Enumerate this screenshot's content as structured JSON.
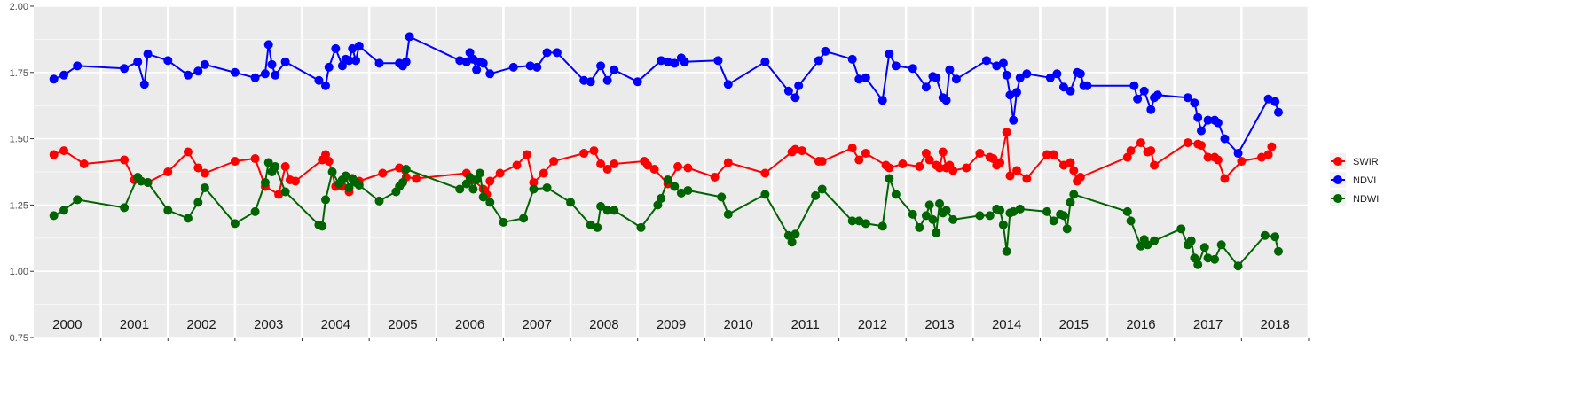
{
  "chart_data": {
    "type": "line",
    "title": "",
    "xlabel": "",
    "ylabel": "",
    "x_range": [
      2000.0,
      2019.0
    ],
    "ylim": [
      0.75,
      2.0
    ],
    "y_ticks": [
      "0.75",
      "1.00",
      "1.25",
      "1.50",
      "1.75",
      "2.00"
    ],
    "year_labels": [
      "2000",
      "2001",
      "2002",
      "2003",
      "2004",
      "2005",
      "2006",
      "2007",
      "2008",
      "2009",
      "2010",
      "2011",
      "2012",
      "2013",
      "2014",
      "2015",
      "2016",
      "2017",
      "2018"
    ],
    "grid": true,
    "legend_position": "right",
    "series": [
      {
        "name": "SWIR",
        "color": "#ff0000",
        "x": [
          2000.3,
          2000.45,
          2000.75,
          2001.35,
          2001.5,
          2001.7,
          2002.0,
          2002.3,
          2002.45,
          2002.55,
          2003.0,
          2003.3,
          2003.45,
          2003.65,
          2003.75,
          2003.82,
          2003.9,
          2004.3,
          2004.35,
          2004.4,
          2004.5,
          2004.6,
          2004.7,
          2004.75,
          2004.85,
          2005.2,
          2005.45,
          2005.55,
          2005.7,
          2006.45,
          2006.55,
          2006.7,
          2006.75,
          2006.8,
          2006.95,
          2007.2,
          2007.35,
          2007.45,
          2007.6,
          2007.75,
          2008.2,
          2008.35,
          2008.45,
          2008.55,
          2008.65,
          2009.1,
          2009.15,
          2009.25,
          2009.45,
          2009.6,
          2009.75,
          2010.15,
          2010.35,
          2010.9,
          2011.3,
          2011.35,
          2011.45,
          2011.7,
          2011.75,
          2012.2,
          2012.3,
          2012.4,
          2012.7,
          2012.75,
          2012.95,
          2013.2,
          2013.3,
          2013.35,
          2013.45,
          2013.5,
          2013.55,
          2013.6,
          2013.65,
          2013.7,
          2013.9,
          2014.1,
          2014.25,
          2014.3,
          2014.35,
          2014.4,
          2014.5,
          2014.55,
          2014.65,
          2014.8,
          2015.1,
          2015.2,
          2015.35,
          2015.45,
          2015.5,
          2015.55,
          2015.6,
          2016.3,
          2016.35,
          2016.5,
          2016.6,
          2016.65,
          2016.7,
          2017.2,
          2017.35,
          2017.4,
          2017.5,
          2017.6,
          2017.65,
          2017.75,
          2018.0,
          2018.3,
          2018.4
        ],
        "values": [
          1.44,
          1.455,
          1.405,
          1.42,
          1.345,
          1.335,
          1.375,
          1.45,
          1.39,
          1.37,
          1.415,
          1.425,
          1.32,
          1.29,
          1.395,
          1.345,
          1.34,
          1.42,
          1.44,
          1.415,
          1.32,
          1.32,
          1.3,
          1.35,
          1.34,
          1.37,
          1.39,
          1.355,
          1.35,
          1.37,
          1.345,
          1.31,
          1.29,
          1.34,
          1.37,
          1.4,
          1.44,
          1.335,
          1.37,
          1.415,
          1.445,
          1.455,
          1.405,
          1.385,
          1.405,
          1.415,
          1.4,
          1.385,
          1.33,
          1.395,
          1.39,
          1.355,
          1.41,
          1.37,
          1.45,
          1.46,
          1.455,
          1.415,
          1.415,
          1.465,
          1.42,
          1.445,
          1.4,
          1.39,
          1.405,
          1.395,
          1.445,
          1.42,
          1.4,
          1.39,
          1.45,
          1.39,
          1.4,
          1.38,
          1.39,
          1.445,
          1.43,
          1.425,
          1.4,
          1.41,
          1.525,
          1.36,
          1.38,
          1.35,
          1.44,
          1.44,
          1.4,
          1.41,
          1.38,
          1.34,
          1.355,
          1.43,
          1.455,
          1.485,
          1.45,
          1.455,
          1.4,
          1.485,
          1.48,
          1.475,
          1.43,
          1.43,
          1.42,
          1.35,
          1.415,
          1.43,
          1.44
        ],
        "end_point": [
          2018.45,
          1.47
        ]
      },
      {
        "name": "NDVI",
        "color": "#0000ff",
        "x": [
          2000.3,
          2000.45,
          2000.65,
          2001.35,
          2001.55,
          2001.65,
          2001.7,
          2002.0,
          2002.3,
          2002.45,
          2002.55,
          2003.0,
          2003.3,
          2003.45,
          2003.5,
          2003.55,
          2003.6,
          2003.75,
          2004.25,
          2004.35,
          2004.4,
          2004.5,
          2004.6,
          2004.65,
          2004.7,
          2004.75,
          2004.8,
          2004.85,
          2005.15,
          2005.45,
          2005.5,
          2005.55,
          2005.6,
          2006.35,
          2006.45,
          2006.5,
          2006.55,
          2006.6,
          2006.65,
          2006.7,
          2006.8,
          2007.15,
          2007.4,
          2007.5,
          2007.65,
          2007.8,
          2008.2,
          2008.3,
          2008.45,
          2008.55,
          2008.65,
          2009.0,
          2009.35,
          2009.45,
          2009.55,
          2009.65,
          2009.7,
          2010.2,
          2010.35,
          2010.9,
          2011.25,
          2011.35,
          2011.4,
          2011.7,
          2011.8,
          2012.2,
          2012.3,
          2012.4,
          2012.65,
          2012.75,
          2012.85,
          2013.1,
          2013.3,
          2013.4,
          2013.45,
          2013.55,
          2013.6,
          2013.65,
          2013.75,
          2014.2,
          2014.35,
          2014.45,
          2014.5,
          2014.55,
          2014.6,
          2014.65,
          2014.7,
          2014.8,
          2015.15,
          2015.25,
          2015.35,
          2015.45,
          2015.55,
          2015.6,
          2015.65,
          2015.7,
          2016.4,
          2016.45,
          2016.55,
          2016.65,
          2016.7,
          2016.75,
          2017.2,
          2017.3,
          2017.35,
          2017.4,
          2017.5,
          2017.6,
          2017.65,
          2017.75,
          2017.95,
          2018.4,
          2018.5
        ],
        "values": [
          1.725,
          1.74,
          1.775,
          1.765,
          1.79,
          1.705,
          1.82,
          1.795,
          1.74,
          1.755,
          1.78,
          1.75,
          1.73,
          1.745,
          1.855,
          1.78,
          1.74,
          1.79,
          1.72,
          1.7,
          1.77,
          1.84,
          1.775,
          1.8,
          1.795,
          1.84,
          1.795,
          1.85,
          1.785,
          1.785,
          1.775,
          1.79,
          1.885,
          1.795,
          1.79,
          1.825,
          1.8,
          1.76,
          1.79,
          1.785,
          1.745,
          1.77,
          1.775,
          1.77,
          1.825,
          1.825,
          1.72,
          1.715,
          1.775,
          1.72,
          1.76,
          1.715,
          1.795,
          1.79,
          1.785,
          1.805,
          1.79,
          1.795,
          1.705,
          1.79,
          1.68,
          1.655,
          1.7,
          1.795,
          1.83,
          1.8,
          1.725,
          1.73,
          1.645,
          1.82,
          1.775,
          1.765,
          1.695,
          1.735,
          1.73,
          1.655,
          1.645,
          1.76,
          1.725,
          1.795,
          1.775,
          1.785,
          1.74,
          1.665,
          1.57,
          1.675,
          1.73,
          1.745,
          1.73,
          1.745,
          1.695,
          1.68,
          1.75,
          1.745,
          1.7,
          1.7,
          1.7,
          1.65,
          1.68,
          1.61,
          1.655,
          1.665,
          1.655,
          1.635,
          1.58,
          1.53,
          1.57,
          1.57,
          1.56,
          1.5,
          1.445,
          1.65,
          1.64
        ],
        "end_point": [
          2018.55,
          1.6
        ]
      },
      {
        "name": "NDWI",
        "color": "#006400",
        "x": [
          2000.3,
          2000.45,
          2000.65,
          2001.35,
          2001.55,
          2001.6,
          2001.7,
          2002.0,
          2002.3,
          2002.45,
          2002.55,
          2003.0,
          2003.3,
          2003.45,
          2003.5,
          2003.55,
          2003.6,
          2003.75,
          2004.25,
          2004.3,
          2004.35,
          2004.45,
          2004.55,
          2004.6,
          2004.65,
          2004.7,
          2004.75,
          2004.8,
          2004.85,
          2005.15,
          2005.4,
          2005.45,
          2005.5,
          2005.55,
          2006.35,
          2006.45,
          2006.5,
          2006.55,
          2006.6,
          2006.65,
          2006.7,
          2006.8,
          2007.0,
          2007.3,
          2007.45,
          2007.65,
          2008.0,
          2008.3,
          2008.4,
          2008.45,
          2008.55,
          2008.65,
          2009.05,
          2009.3,
          2009.35,
          2009.45,
          2009.55,
          2009.65,
          2009.75,
          2010.25,
          2010.35,
          2010.9,
          2011.25,
          2011.3,
          2011.35,
          2011.65,
          2011.75,
          2012.2,
          2012.3,
          2012.4,
          2012.65,
          2012.75,
          2012.85,
          2013.1,
          2013.2,
          2013.3,
          2013.35,
          2013.4,
          2013.45,
          2013.5,
          2013.55,
          2013.6,
          2013.7,
          2014.1,
          2014.25,
          2014.35,
          2014.4,
          2014.45,
          2014.5,
          2014.55,
          2014.6,
          2014.7,
          2015.1,
          2015.2,
          2015.3,
          2015.35,
          2015.4,
          2015.45,
          2015.5,
          2016.3,
          2016.35,
          2016.5,
          2016.55,
          2016.6,
          2016.7,
          2017.1,
          2017.2,
          2017.25,
          2017.3,
          2017.35,
          2017.45,
          2017.5,
          2017.6,
          2017.7,
          2017.95,
          2018.35,
          2018.5
        ],
        "values": [
          1.21,
          1.23,
          1.27,
          1.24,
          1.355,
          1.34,
          1.335,
          1.23,
          1.2,
          1.26,
          1.315,
          1.18,
          1.225,
          1.335,
          1.41,
          1.375,
          1.395,
          1.3,
          1.175,
          1.17,
          1.27,
          1.375,
          1.33,
          1.345,
          1.36,
          1.315,
          1.35,
          1.335,
          1.325,
          1.265,
          1.3,
          1.32,
          1.335,
          1.385,
          1.31,
          1.33,
          1.355,
          1.31,
          1.345,
          1.37,
          1.28,
          1.26,
          1.185,
          1.2,
          1.31,
          1.315,
          1.26,
          1.175,
          1.165,
          1.245,
          1.23,
          1.23,
          1.165,
          1.25,
          1.275,
          1.345,
          1.32,
          1.295,
          1.305,
          1.28,
          1.215,
          1.29,
          1.135,
          1.11,
          1.14,
          1.285,
          1.31,
          1.19,
          1.19,
          1.18,
          1.17,
          1.35,
          1.29,
          1.215,
          1.165,
          1.21,
          1.25,
          1.195,
          1.145,
          1.255,
          1.22,
          1.23,
          1.195,
          1.21,
          1.21,
          1.235,
          1.23,
          1.175,
          1.075,
          1.22,
          1.225,
          1.235,
          1.225,
          1.19,
          1.215,
          1.21,
          1.16,
          1.26,
          1.29,
          1.225,
          1.19,
          1.095,
          1.12,
          1.1,
          1.115,
          1.16,
          1.1,
          1.115,
          1.05,
          1.025,
          1.09,
          1.05,
          1.045,
          1.1,
          1.02,
          1.135,
          1.13
        ],
        "end_point": [
          2018.55,
          1.075
        ]
      }
    ]
  }
}
